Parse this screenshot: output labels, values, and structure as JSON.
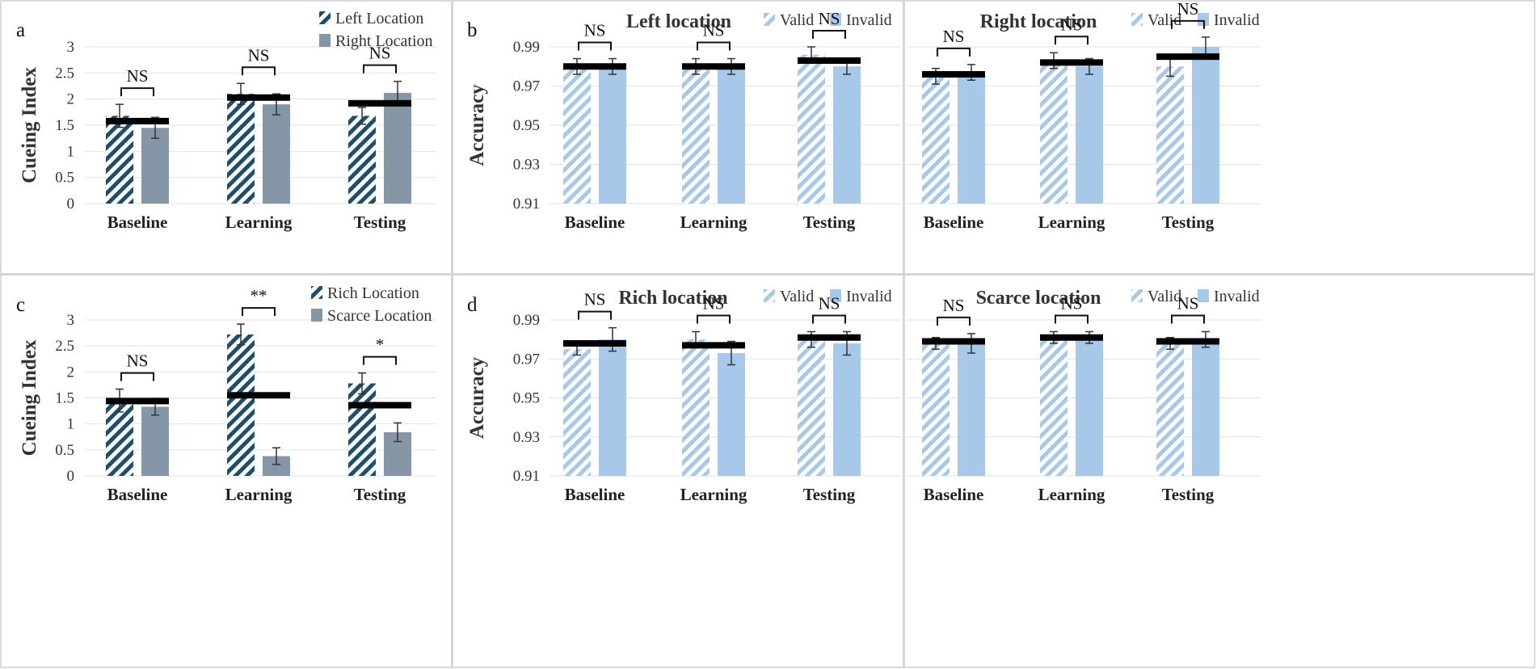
{
  "colors": {
    "navy": "#1d4e6e",
    "gray": "#8596a6",
    "light_blue": "#a7c8e8",
    "mean_line": "#000000"
  },
  "chart_data": [
    {
      "id": "a",
      "type": "bar",
      "letter": "a",
      "title": "",
      "ylabel": "Cueing Index",
      "ylim": [
        0,
        3
      ],
      "yticks": [
        0,
        0.5,
        1,
        1.5,
        2,
        2.5,
        3
      ],
      "categories": [
        "Baseline",
        "Learning",
        "Testing"
      ],
      "series": [
        {
          "name": "Left Location",
          "style": "navy-hatch",
          "values": [
            1.68,
            2.1,
            1.68
          ],
          "errors": [
            0.22,
            0.2,
            0.16
          ]
        },
        {
          "name": "Right Location",
          "style": "gray-solid",
          "values": [
            1.45,
            1.9,
            2.12
          ],
          "errors": [
            0.2,
            0.2,
            0.22
          ]
        }
      ],
      "means": [
        1.58,
        2.03,
        1.92
      ],
      "significance": [
        "NS",
        "NS",
        "NS"
      ]
    },
    {
      "id": "b1",
      "type": "bar",
      "letter": "b",
      "title": "Left location",
      "ylabel": "Accuracy",
      "ylim": [
        0.91,
        0.99
      ],
      "yticks": [
        0.91,
        0.93,
        0.95,
        0.97,
        0.99
      ],
      "categories": [
        "Baseline",
        "Learning",
        "Testing"
      ],
      "series": [
        {
          "name": "Valid",
          "style": "light-hatch",
          "values": [
            0.98,
            0.98,
            0.986
          ],
          "errors": [
            0.004,
            0.004,
            0.004
          ]
        },
        {
          "name": "Invalid",
          "style": "light-solid",
          "values": [
            0.98,
            0.98,
            0.98
          ],
          "errors": [
            0.004,
            0.004,
            0.004
          ]
        }
      ],
      "means": [
        0.98,
        0.98,
        0.983
      ],
      "significance": [
        "NS",
        "NS",
        "NS"
      ]
    },
    {
      "id": "b2",
      "type": "bar",
      "letter": "",
      "title": "Right location",
      "ylabel": "",
      "ylim": [
        0.91,
        0.99
      ],
      "yticks": [],
      "categories": [
        "Baseline",
        "Learning",
        "Testing"
      ],
      "series": [
        {
          "name": "Valid",
          "style": "light-hatch",
          "values": [
            0.975,
            0.983,
            0.98
          ],
          "errors": [
            0.004,
            0.004,
            0.005
          ]
        },
        {
          "name": "Invalid",
          "style": "light-solid",
          "values": [
            0.977,
            0.98,
            0.99
          ],
          "errors": [
            0.004,
            0.004,
            0.005
          ]
        }
      ],
      "means": [
        0.976,
        0.982,
        0.985
      ],
      "significance": [
        "NS",
        "NS",
        "NS"
      ]
    },
    {
      "id": "c",
      "type": "bar",
      "letter": "c",
      "title": "",
      "ylabel": "Cueing Index",
      "ylim": [
        0,
        3
      ],
      "yticks": [
        0,
        0.5,
        1,
        1.5,
        2,
        2.5,
        3
      ],
      "categories": [
        "Baseline",
        "Learning",
        "Testing"
      ],
      "series": [
        {
          "name": "Rich Location",
          "style": "navy-hatch",
          "values": [
            1.45,
            2.72,
            1.78
          ],
          "errors": [
            0.22,
            0.2,
            0.2
          ]
        },
        {
          "name": "Scarce Location",
          "style": "gray-solid",
          "values": [
            1.33,
            0.38,
            0.84
          ],
          "errors": [
            0.16,
            0.16,
            0.18
          ]
        }
      ],
      "means": [
        1.44,
        1.55,
        1.36
      ],
      "significance": [
        "NS",
        "**",
        "*"
      ]
    },
    {
      "id": "d1",
      "type": "bar",
      "letter": "d",
      "title": "Rich location",
      "ylabel": "Accuracy",
      "ylim": [
        0.91,
        0.99
      ],
      "yticks": [
        0.91,
        0.93,
        0.95,
        0.97,
        0.99
      ],
      "categories": [
        "Baseline",
        "Learning",
        "Testing"
      ],
      "series": [
        {
          "name": "Valid",
          "style": "light-hatch",
          "values": [
            0.975,
            0.98,
            0.98
          ],
          "errors": [
            0.003,
            0.004,
            0.004
          ]
        },
        {
          "name": "Invalid",
          "style": "light-solid",
          "values": [
            0.98,
            0.973,
            0.978
          ],
          "errors": [
            0.006,
            0.006,
            0.006
          ]
        }
      ],
      "means": [
        0.978,
        0.977,
        0.981
      ],
      "significance": [
        "NS",
        "NS",
        "NS"
      ]
    },
    {
      "id": "d2",
      "type": "bar",
      "letter": "",
      "title": "Scarce location",
      "ylabel": "",
      "ylim": [
        0.91,
        0.99
      ],
      "yticks": [],
      "categories": [
        "Baseline",
        "Learning",
        "Testing"
      ],
      "series": [
        {
          "name": "Valid",
          "style": "light-hatch",
          "values": [
            0.978,
            0.981,
            0.978
          ],
          "errors": [
            0.003,
            0.003,
            0.003
          ]
        },
        {
          "name": "Invalid",
          "style": "light-solid",
          "values": [
            0.978,
            0.981,
            0.98
          ],
          "errors": [
            0.005,
            0.003,
            0.004
          ]
        }
      ],
      "means": [
        0.979,
        0.981,
        0.979
      ],
      "significance": [
        "NS",
        "NS",
        "NS"
      ]
    }
  ]
}
